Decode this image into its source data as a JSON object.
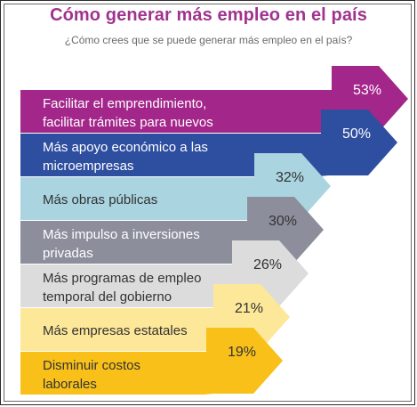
{
  "header": {
    "title": "Cómo generar más empleo en el país",
    "subtitle": "¿Cómo crees que se puede generar más empleo en el país?"
  },
  "chart_data": {
    "type": "bar",
    "title": "Cómo generar más empleo en el país",
    "subtitle": "¿Cómo crees que se puede generar más empleo en el país?",
    "unit": "%",
    "categories": [
      [
        "Facilitar el emprendimiento,",
        "facilitar trámites para nuevos"
      ],
      [
        "Más apoyo económico a las",
        "microempresas"
      ],
      [
        "Más obras públicas"
      ],
      [
        "Más impulso a inversiones",
        "privadas"
      ],
      [
        "Más programas de empleo",
        "temporal del gobierno"
      ],
      [
        "Más empresas estatales"
      ],
      [
        "Disminuir costos",
        "laborales"
      ]
    ],
    "values": [
      53,
      50,
      32,
      30,
      26,
      21,
      19
    ],
    "value_labels": [
      "53%",
      "50%",
      "32%",
      "30%",
      "26%",
      "21%",
      "19%"
    ],
    "colors": [
      "#a3268a",
      "#2e4e9f",
      "#a9d4e0",
      "#8c8e9c",
      "#dcdcdc",
      "#fde799",
      "#f8c018"
    ],
    "text_colors": [
      "#ffffff",
      "#ffffff",
      "#333333",
      "#ffffff",
      "#333333",
      "#333333",
      "#333333"
    ],
    "pct_colors": [
      "#ffffff",
      "#ffffff",
      "#333333",
      "#333333",
      "#333333",
      "#333333",
      "#333333"
    ]
  }
}
